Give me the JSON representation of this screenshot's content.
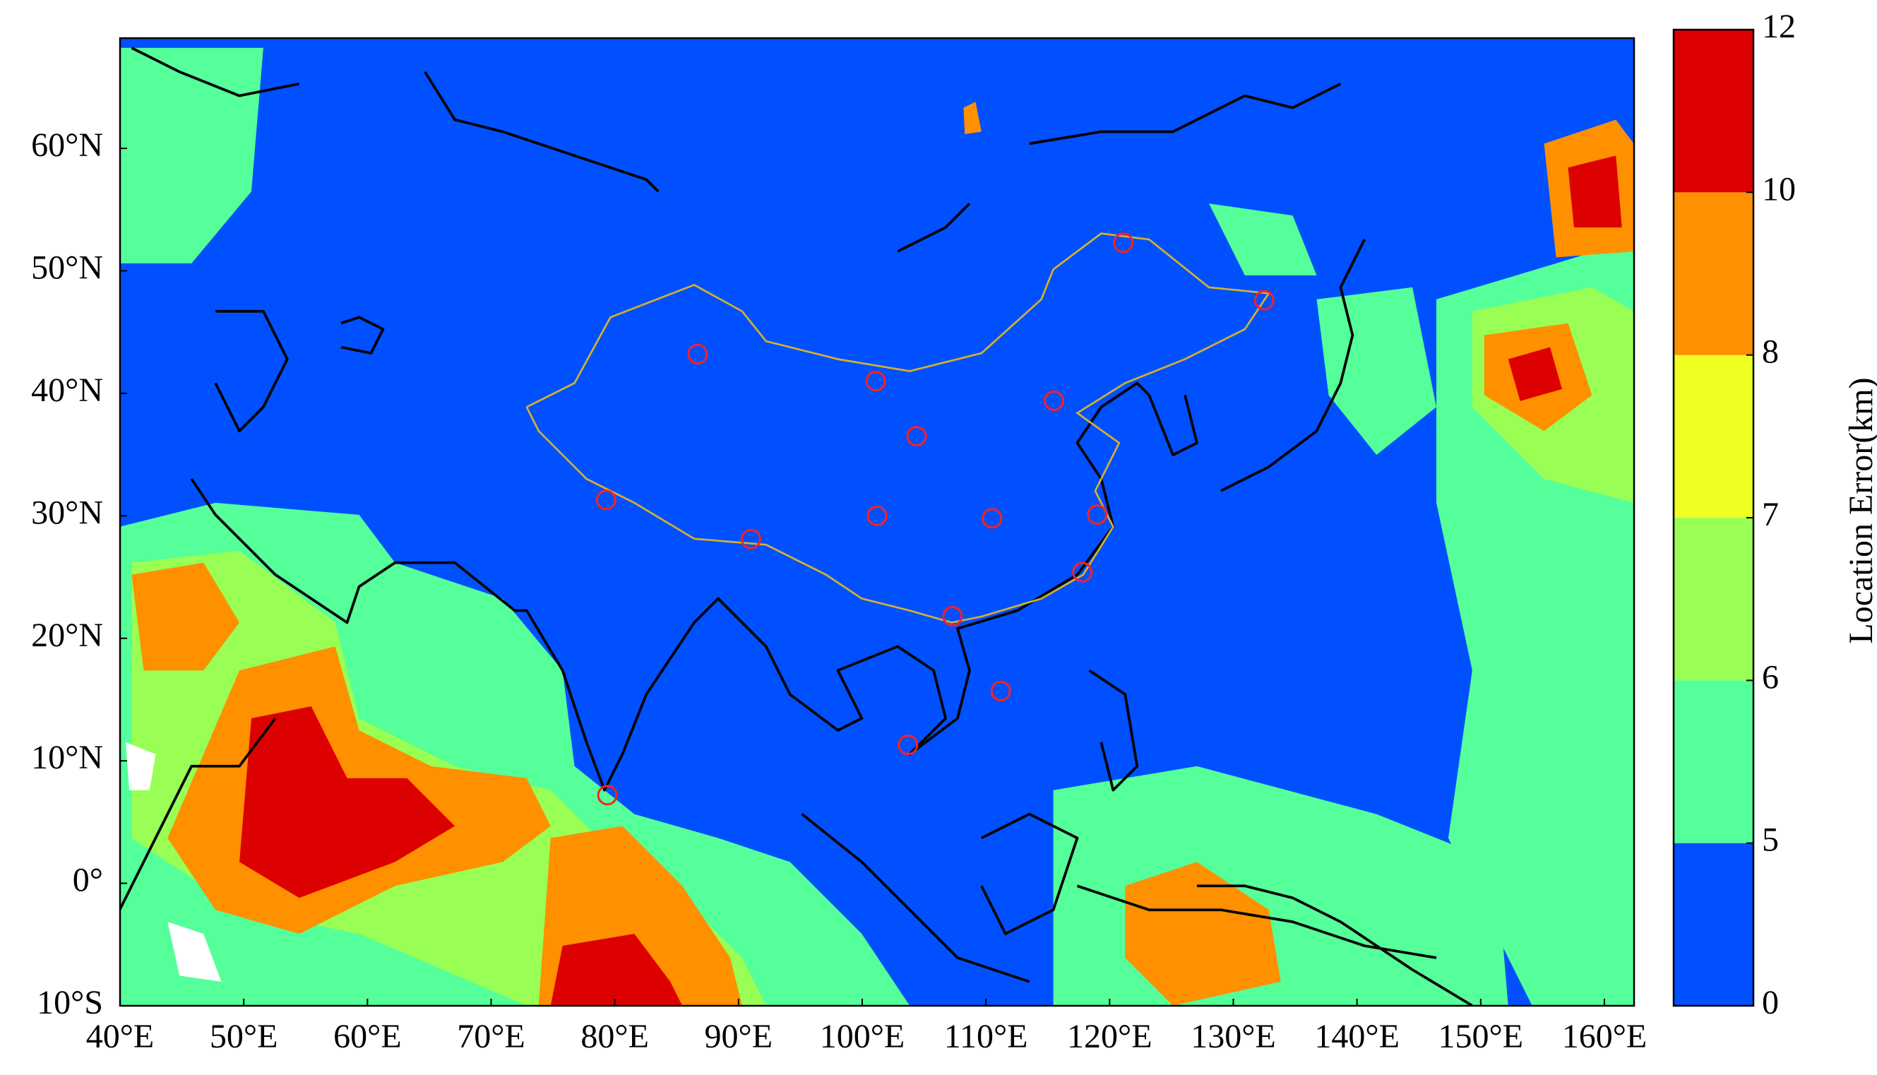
{
  "map": {
    "xlim": [
      40,
      162.4
    ],
    "ylim": [
      -10,
      69
    ],
    "xticks": [
      {
        "value": 40,
        "label": "40°E"
      },
      {
        "value": 50,
        "label": "50°E"
      },
      {
        "value": 60,
        "label": "60°E"
      },
      {
        "value": 70,
        "label": "70°E"
      },
      {
        "value": 80,
        "label": "80°E"
      },
      {
        "value": 90,
        "label": "90°E"
      },
      {
        "value": 100,
        "label": "100°E"
      },
      {
        "value": 110,
        "label": "110°E"
      },
      {
        "value": 120,
        "label": "120°E"
      },
      {
        "value": 130,
        "label": "130°E"
      },
      {
        "value": 140,
        "label": "140°E"
      },
      {
        "value": 150,
        "label": "150°E"
      },
      {
        "value": 160,
        "label": "160°E"
      }
    ],
    "yticks": [
      {
        "value": -10,
        "label": "10°S"
      },
      {
        "value": 0,
        "label": "0°"
      },
      {
        "value": 10,
        "label": "10°N"
      },
      {
        "value": 20,
        "label": "20°N"
      },
      {
        "value": 30,
        "label": "30°N"
      },
      {
        "value": 40,
        "label": "40°N"
      },
      {
        "value": 50,
        "label": "50°N"
      },
      {
        "value": 60,
        "label": "60°N"
      }
    ],
    "colorbar": {
      "label": "Location Error(km)",
      "ticks": [
        0,
        5,
        6,
        7,
        8,
        10,
        12
      ],
      "colors": [
        "#0050ff",
        "#55ff99",
        "#99ff55",
        "#eeff22",
        "#ff9000",
        "#dd0000"
      ]
    },
    "stations": {
      "color": "#ff2020",
      "lon": [
        121.1,
        132.5,
        86.7,
        101.1,
        115.5,
        104.4,
        79.3,
        91.0,
        101.2,
        110.5,
        119.0,
        117.8,
        107.3,
        111.2,
        103.7,
        79.4
      ],
      "lat": [
        52.3,
        47.6,
        43.2,
        41.0,
        39.4,
        36.5,
        31.3,
        28.1,
        30.0,
        29.8,
        30.1,
        25.4,
        21.8,
        15.7,
        11.3,
        7.2
      ]
    }
  }
}
